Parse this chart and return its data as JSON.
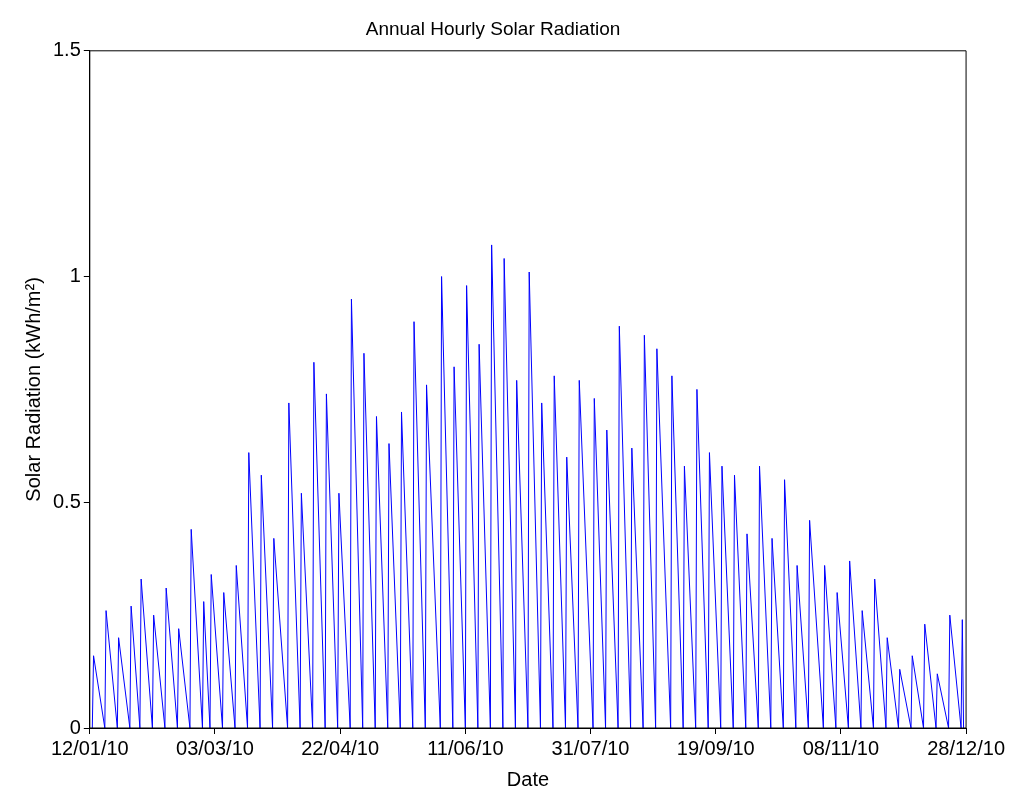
{
  "chart_data": {
    "type": "line",
    "title": "Annual Hourly Solar Radiation",
    "xlabel": "Date",
    "ylabel": "Solar Radiation (kWh/m²)",
    "x": [
      "2010-01-13T00:00",
      "2010-01-13T12:00",
      "2010-01-18T00:00",
      "2010-01-18T12:00",
      "2010-01-23T00:00",
      "2010-01-23T12:00",
      "2010-01-28T00:00",
      "2010-01-28T12:00",
      "2010-02-01T00:00",
      "2010-02-01T12:00",
      "2010-02-06T00:00",
      "2010-02-06T12:00",
      "2010-02-11T00:00",
      "2010-02-11T12:00",
      "2010-02-16T00:00",
      "2010-02-16T12:00",
      "2010-02-21T00:00",
      "2010-02-21T12:00",
      "2010-02-26T00:00",
      "2010-02-26T12:00",
      "2010-03-01T00:00",
      "2010-03-01T12:00",
      "2010-03-06T00:00",
      "2010-03-06T12:00",
      "2010-03-11T00:00",
      "2010-03-11T12:00",
      "2010-03-16T00:00",
      "2010-03-16T12:00",
      "2010-03-21T00:00",
      "2010-03-21T12:00",
      "2010-03-26T00:00",
      "2010-03-26T12:00",
      "2010-04-01T00:00",
      "2010-04-01T12:00",
      "2010-04-06T00:00",
      "2010-04-06T12:00",
      "2010-04-11T00:00",
      "2010-04-11T12:00",
      "2010-04-16T00:00",
      "2010-04-16T12:00",
      "2010-04-21T00:00",
      "2010-04-21T12:00",
      "2010-04-26T00:00",
      "2010-04-26T12:00",
      "2010-05-01T00:00",
      "2010-05-01T12:00",
      "2010-05-06T00:00",
      "2010-05-06T12:00",
      "2010-05-11T00:00",
      "2010-05-11T12:00",
      "2010-05-16T00:00",
      "2010-05-16T12:00",
      "2010-05-21T00:00",
      "2010-05-21T12:00",
      "2010-05-26T00:00",
      "2010-05-26T12:00",
      "2010-06-01T00:00",
      "2010-06-01T12:00",
      "2010-06-06T00:00",
      "2010-06-06T12:00",
      "2010-06-11T00:00",
      "2010-06-11T12:00",
      "2010-06-16T00:00",
      "2010-06-16T12:00",
      "2010-06-21T00:00",
      "2010-06-21T12:00",
      "2010-06-26T00:00",
      "2010-06-26T12:00",
      "2010-07-01T00:00",
      "2010-07-01T12:00",
      "2010-07-06T00:00",
      "2010-07-06T12:00",
      "2010-07-11T00:00",
      "2010-07-11T12:00",
      "2010-07-16T00:00",
      "2010-07-16T12:00",
      "2010-07-21T00:00",
      "2010-07-21T12:00",
      "2010-07-26T00:00",
      "2010-07-26T12:00",
      "2010-08-01T00:00",
      "2010-08-01T12:00",
      "2010-08-06T00:00",
      "2010-08-06T12:00",
      "2010-08-11T00:00",
      "2010-08-11T12:00",
      "2010-08-16T00:00",
      "2010-08-16T12:00",
      "2010-08-21T00:00",
      "2010-08-21T12:00",
      "2010-08-26T00:00",
      "2010-08-26T12:00",
      "2010-09-01T00:00",
      "2010-09-01T12:00",
      "2010-09-06T00:00",
      "2010-09-06T12:00",
      "2010-09-11T00:00",
      "2010-09-11T12:00",
      "2010-09-16T00:00",
      "2010-09-16T12:00",
      "2010-09-21T00:00",
      "2010-09-21T12:00",
      "2010-09-26T00:00",
      "2010-09-26T12:00",
      "2010-10-01T00:00",
      "2010-10-01T12:00",
      "2010-10-06T00:00",
      "2010-10-06T12:00",
      "2010-10-11T00:00",
      "2010-10-11T12:00",
      "2010-10-16T00:00",
      "2010-10-16T12:00",
      "2010-10-21T00:00",
      "2010-10-21T12:00",
      "2010-10-26T00:00",
      "2010-10-26T12:00",
      "2010-11-01T00:00",
      "2010-11-01T12:00",
      "2010-11-06T00:00",
      "2010-11-06T12:00",
      "2010-11-11T00:00",
      "2010-11-11T12:00",
      "2010-11-16T00:00",
      "2010-11-16T12:00",
      "2010-11-21T00:00",
      "2010-11-21T12:00",
      "2010-11-26T00:00",
      "2010-11-26T12:00",
      "2010-12-01T00:00",
      "2010-12-01T12:00",
      "2010-12-06T00:00",
      "2010-12-06T12:00",
      "2010-12-11T00:00",
      "2010-12-11T12:00",
      "2010-12-16T00:00",
      "2010-12-16T12:00",
      "2010-12-21T00:00",
      "2010-12-21T12:00",
      "2010-12-26T00:00",
      "2010-12-26T12:00",
      "2010-12-27T00:00"
    ],
    "series": [
      {
        "color": "#0000ff",
        "values": [
          0,
          0.16,
          0,
          0.26,
          0,
          0.2,
          0,
          0.27,
          0,
          0.33,
          0,
          0.25,
          0,
          0.31,
          0,
          0.22,
          0,
          0.44,
          0,
          0.28,
          0,
          0.34,
          0,
          0.3,
          0,
          0.36,
          0,
          0.61,
          0,
          0.56,
          0,
          0.42,
          0,
          0.72,
          0,
          0.52,
          0,
          0.81,
          0,
          0.74,
          0,
          0.52,
          0,
          0.95,
          0,
          0.83,
          0,
          0.69,
          0,
          0.63,
          0,
          0.7,
          0,
          0.9,
          0,
          0.76,
          0,
          1.0,
          0,
          0.8,
          0,
          0.98,
          0,
          0.85,
          0,
          1.07,
          0,
          1.04,
          0,
          0.77,
          0,
          1.01,
          0,
          0.72,
          0,
          0.78,
          0,
          0.6,
          0,
          0.77,
          0,
          0.73,
          0,
          0.66,
          0,
          0.89,
          0,
          0.62,
          0,
          0.87,
          0,
          0.84,
          0,
          0.78,
          0,
          0.58,
          0,
          0.75,
          0,
          0.61,
          0,
          0.58,
          0,
          0.56,
          0,
          0.43,
          0,
          0.58,
          0,
          0.42,
          0,
          0.55,
          0,
          0.36,
          0,
          0.46,
          0,
          0.36,
          0,
          0.3,
          0,
          0.37,
          0,
          0.26,
          0,
          0.33,
          0,
          0.2,
          0,
          0.13,
          0,
          0.16,
          0,
          0.23,
          0,
          0.12,
          0,
          0.25,
          0,
          0.24,
          0
        ]
      }
    ],
    "xlim": [
      "2010-01-12",
      "2010-12-28"
    ],
    "xticks": [
      {
        "value": "2010-01-12",
        "label": "12/01/10"
      },
      {
        "value": "2010-03-03",
        "label": "03/03/10"
      },
      {
        "value": "2010-04-22",
        "label": "22/04/10"
      },
      {
        "value": "2010-06-11",
        "label": "11/06/10"
      },
      {
        "value": "2010-07-31",
        "label": "31/07/10"
      },
      {
        "value": "2010-09-19",
        "label": "19/09/10"
      },
      {
        "value": "2010-11-08",
        "label": "08/11/10"
      },
      {
        "value": "2010-12-28",
        "label": "28/12/10"
      }
    ],
    "ylim": [
      0,
      1.5
    ],
    "yticks": [
      0,
      0.5,
      1,
      1.5
    ],
    "grid": false,
    "legend": false,
    "marker": "none",
    "line_style": "solid"
  }
}
